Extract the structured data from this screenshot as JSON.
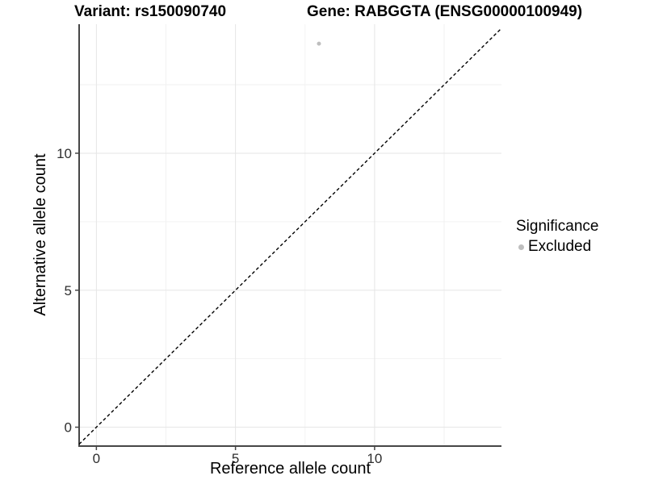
{
  "chart_data": {
    "type": "scatter",
    "title_left": "Variant: rs150090740",
    "title_right": "Gene: RABGGTA (ENSG00000100949)",
    "xlabel": "Reference allele count",
    "ylabel": "Alternative allele count",
    "xlim": [
      -0.62,
      14.56
    ],
    "ylim": [
      -0.69,
      14.71
    ],
    "x_ticks": [
      0,
      5,
      10
    ],
    "y_ticks": [
      0,
      5,
      10
    ],
    "x_tick_labels": [
      "0",
      "5",
      "10"
    ],
    "y_tick_labels": [
      "0",
      "5",
      "10"
    ],
    "x_minor_ticks": [
      2.5,
      7.5,
      12.5
    ],
    "y_minor_ticks": [
      2.5,
      7.5,
      12.5
    ],
    "grid": "major and minor gridlines on white panel",
    "axis_lines": "left and bottom only",
    "legend": {
      "title": "Significance",
      "position": "right",
      "entries": [
        {
          "label": "Excluded",
          "color": "#bebebe"
        }
      ]
    },
    "series": [
      {
        "name": "Excluded",
        "color": "#bebebe",
        "points": [
          {
            "x": 8,
            "y": 14
          }
        ]
      }
    ],
    "reference_line": {
      "type": "identity y=x",
      "style": "dashed",
      "color": "#000000"
    },
    "colors": {
      "background": "#ffffff",
      "grid_major": "#e5e5e5",
      "grid_minor": "#f2f2f2",
      "axis": "#464646",
      "tick_label": "#2e2e2e",
      "point": "#bebebe"
    }
  }
}
